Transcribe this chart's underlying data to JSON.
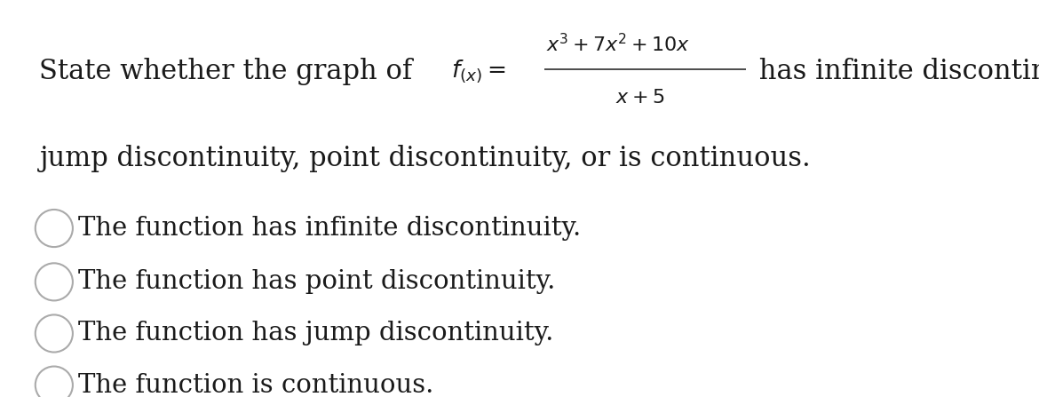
{
  "background_color": "#ffffff",
  "text_color": "#1a1a1a",
  "font_size_main": 22,
  "font_size_math": 18,
  "font_size_options": 21,
  "title_line2": "jump discontinuity, point discontinuity, or is continuous.",
  "options": [
    "The function has infinite discontinuity.",
    "The function has point discontinuity.",
    "The function has jump discontinuity.",
    "The function is continuous."
  ],
  "figsize": [
    11.7,
    4.47
  ],
  "dpi": 100,
  "circle_color": "#aaaaaa",
  "circle_linewidth": 1.5,
  "prefix_text": "State whether the graph of ",
  "suffix_text": " has infinite discontinuity,",
  "fraction_numerator": "x^3 + 7x^2 + 10x",
  "fraction_denominator": "x + 5",
  "func_label": "f_{(x)} ="
}
